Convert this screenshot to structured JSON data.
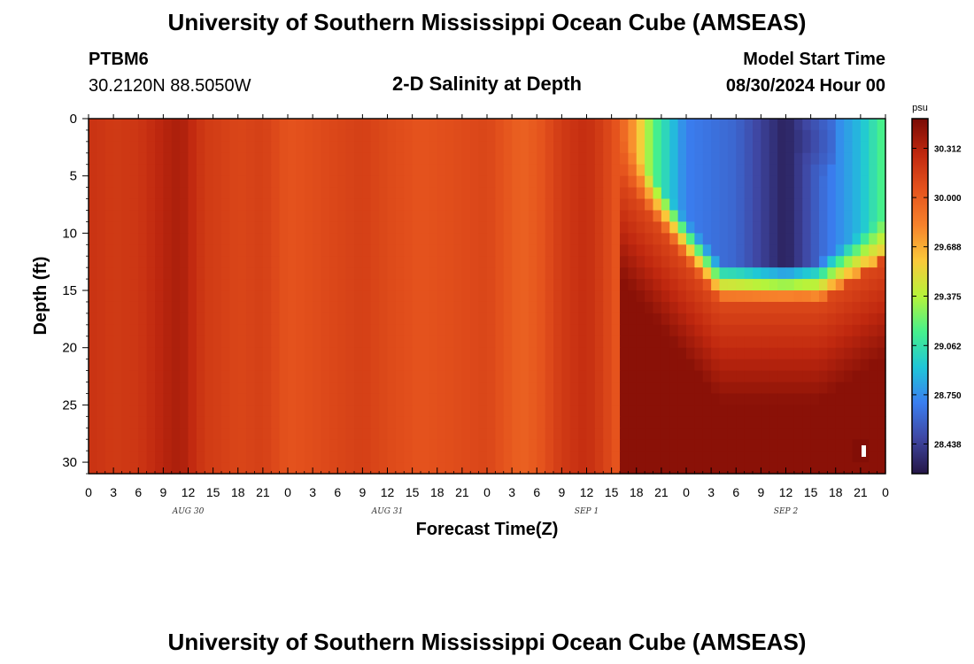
{
  "header": {
    "title": "University of Southern Mississippi Ocean Cube (AMSEAS)",
    "station_id": "PTBM6",
    "station_coords": "30.2120N  88.5050W",
    "chart_title": "2-D Salinity at Depth",
    "model_start_label": "Model Start Time",
    "model_start_value": "08/30/2024 Hour 00"
  },
  "footer": {
    "title": "University of Southern Mississippi Ocean Cube (AMSEAS)"
  },
  "chart_data": {
    "type": "heatmap",
    "title": "2-D Salinity at Depth",
    "xlabel": "Forecast Time(Z)",
    "ylabel": "Depth (ft)",
    "xlim": [
      0,
      96
    ],
    "ylim": [
      0,
      31
    ],
    "x_tick_labels": [
      "0",
      "3",
      "6",
      "9",
      "12",
      "15",
      "18",
      "21",
      "0",
      "3",
      "6",
      "9",
      "12",
      "15",
      "18",
      "21",
      "0",
      "3",
      "6",
      "9",
      "12",
      "15",
      "18",
      "21",
      "0",
      "3",
      "6",
      "9",
      "12",
      "15",
      "18",
      "21",
      "0"
    ],
    "date_labels": [
      {
        "label": "AUG 30",
        "hour": 12
      },
      {
        "label": "AUG 31",
        "hour": 36
      },
      {
        "label": "SEP 1",
        "hour": 60
      },
      {
        "label": "SEP 2",
        "hour": 84
      }
    ],
    "y_ticks": [
      0,
      5,
      10,
      15,
      20,
      25,
      30
    ],
    "colorbar": {
      "unit": "psu",
      "range": [
        28.25,
        30.5
      ],
      "tick_values": [
        30.312,
        30.0,
        29.688,
        29.375,
        29.062,
        28.75,
        28.438
      ],
      "tick_labels": [
        "30.312",
        "30.000",
        "29.688",
        "29.375",
        "29.062",
        "28.750",
        "28.438"
      ],
      "colors": [
        "#251646",
        "#3f47a3",
        "#3a7ef0",
        "#1fc6d8",
        "#46f08c",
        "#b6f43a",
        "#fbc93a",
        "#f7822b",
        "#e5531d",
        "#c0280f",
        "#7a0b05"
      ]
    },
    "surface_salinity_by_hour": [
      {
        "hour": 0,
        "value": 30.22
      },
      {
        "hour": 3,
        "value": 30.18
      },
      {
        "hour": 6,
        "value": 30.2
      },
      {
        "hour": 9,
        "value": 30.3
      },
      {
        "hour": 11,
        "value": 30.35
      },
      {
        "hour": 14,
        "value": 30.18
      },
      {
        "hour": 18,
        "value": 30.12
      },
      {
        "hour": 21,
        "value": 30.15
      },
      {
        "hour": 24,
        "value": 30.05
      },
      {
        "hour": 27,
        "value": 30.08
      },
      {
        "hour": 30,
        "value": 30.12
      },
      {
        "hour": 33,
        "value": 30.15
      },
      {
        "hour": 36,
        "value": 30.1
      },
      {
        "hour": 40,
        "value": 30.05
      },
      {
        "hour": 44,
        "value": 30.08
      },
      {
        "hour": 48,
        "value": 30.12
      },
      {
        "hour": 50,
        "value": 30.05
      },
      {
        "hour": 52,
        "value": 29.98
      },
      {
        "hour": 54,
        "value": 30.02
      },
      {
        "hour": 57,
        "value": 30.18
      },
      {
        "hour": 60,
        "value": 30.25
      },
      {
        "hour": 62,
        "value": 30.15
      },
      {
        "hour": 64,
        "value": 30.02
      },
      {
        "hour": 66,
        "value": 29.7
      },
      {
        "hour": 68,
        "value": 29.2
      },
      {
        "hour": 72,
        "value": 28.7
      },
      {
        "hour": 78,
        "value": 28.6
      },
      {
        "hour": 84,
        "value": 28.3
      },
      {
        "hour": 88,
        "value": 28.6
      },
      {
        "hour": 93,
        "value": 28.9
      },
      {
        "hour": 96,
        "value": 29.2
      }
    ],
    "fresh_lens": {
      "center_hour": 84,
      "center_depth_ft": 2,
      "min_value": 28.3,
      "bottom_depth_ft": 16
    },
    "bottom_max": {
      "hour": 93,
      "depth_ft": 29,
      "value": 30.5
    }
  }
}
